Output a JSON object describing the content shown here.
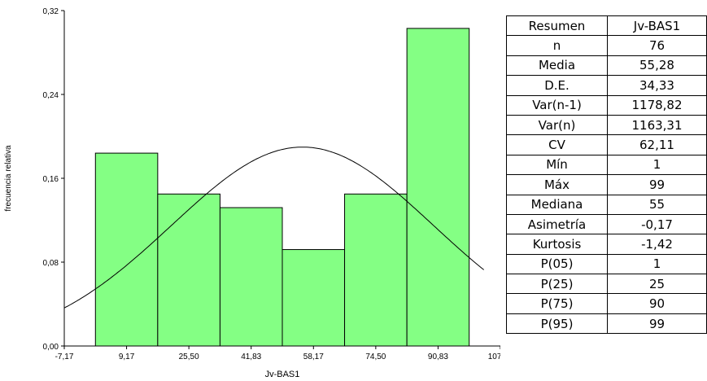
{
  "chart_data": {
    "type": "bar",
    "subtype": "histogram",
    "xlabel": "Jv-BAS1",
    "ylabel": "frecuencia relativa",
    "x_ticks": [
      "-7,17",
      "9,17",
      "25,50",
      "41,83",
      "58,17",
      "74,50",
      "90,83",
      "107,17"
    ],
    "y_ticks": [
      "0,00",
      "0,08",
      "0,16",
      "0,24",
      "0,32"
    ],
    "xlim": [
      -7.17,
      107.17
    ],
    "ylim": [
      0,
      0.32
    ],
    "bin_edges": [
      1,
      17.33,
      33.67,
      50,
      66.33,
      82.67,
      99
    ],
    "categories": [
      "9,17",
      "25,50",
      "41,83",
      "58,17",
      "74,50",
      "90,83"
    ],
    "values": [
      0.184,
      0.145,
      0.132,
      0.092,
      0.145,
      0.303
    ],
    "bar_color": "#84ff84",
    "normal_curve": {
      "mean": 55.28,
      "sd": 34.33
    },
    "grid": false
  },
  "table": {
    "header": [
      "Resumen",
      "Jv-BAS1"
    ],
    "rows": [
      [
        "n",
        "76"
      ],
      [
        "Media",
        "55,28"
      ],
      [
        "D.E.",
        "34,33"
      ],
      [
        "Var(n-1)",
        "1178,82"
      ],
      [
        "Var(n)",
        "1163,31"
      ],
      [
        "CV",
        "62,11"
      ],
      [
        "Mín",
        "1"
      ],
      [
        "Máx",
        "99"
      ],
      [
        "Mediana",
        "55"
      ],
      [
        "Asimetría",
        "-0,17"
      ],
      [
        "Kurtosis",
        "-1,42"
      ],
      [
        "P(05)",
        "1"
      ],
      [
        "P(25)",
        "25"
      ],
      [
        "P(75)",
        "90"
      ],
      [
        "P(95)",
        "99"
      ]
    ]
  }
}
